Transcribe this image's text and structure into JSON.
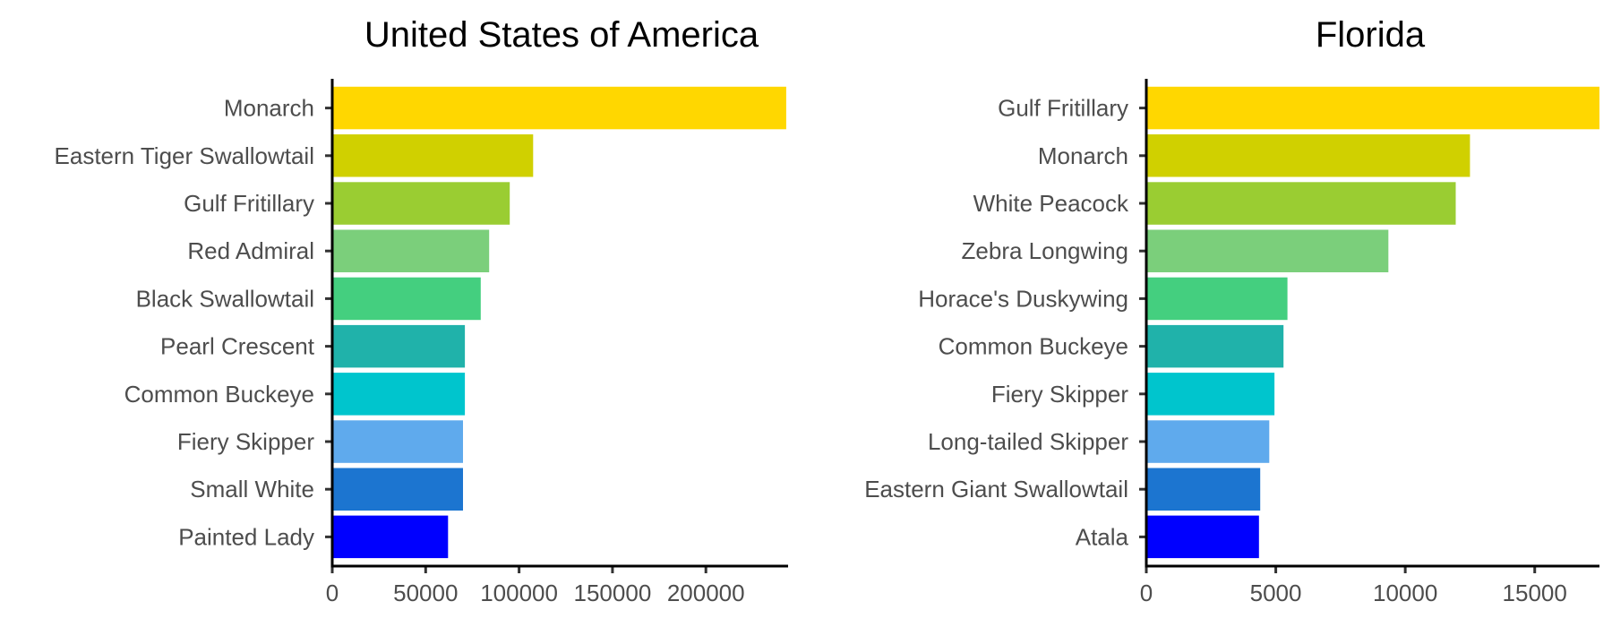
{
  "chart_data": [
    {
      "type": "bar",
      "orientation": "horizontal",
      "title": "United States of America",
      "xlabel": "",
      "ylabel": "",
      "categories": [
        "Monarch",
        "Eastern Tiger Swallowtail",
        "Gulf Fritillary",
        "Red Admiral",
        "Black Swallowtail",
        "Pearl Crescent",
        "Common Buckeye",
        "Fiery Skipper",
        "Small White",
        "Painted Lady"
      ],
      "values": [
        243000,
        107500,
        95000,
        84000,
        79500,
        71000,
        71000,
        70000,
        70000,
        62000
      ],
      "colors": [
        "#FFD700",
        "#D0D000",
        "#9ACD32",
        "#7BCF7B",
        "#44CF7F",
        "#20B2AA",
        "#00C5CD",
        "#5FAAED",
        "#1C75D0",
        "#0000FF"
      ],
      "xlim": [
        0,
        244000
      ],
      "xticks": [
        0,
        50000,
        100000,
        150000,
        200000
      ],
      "xtick_labels": [
        "0",
        "50000",
        "100000",
        "150000",
        "200000"
      ],
      "grid": false
    },
    {
      "type": "bar",
      "orientation": "horizontal",
      "title": "Florida",
      "xlabel": "",
      "ylabel": "",
      "categories": [
        "Gulf Fritillary",
        "Monarch",
        "White Peacock",
        "Zebra Longwing",
        "Horace's Duskywing",
        "Common Buckeye",
        "Fiery Skipper",
        "Long-tailed Skipper",
        "Eastern Giant Swallowtail",
        "Atala"
      ],
      "values": [
        17500,
        12500,
        11950,
        9350,
        5450,
        5300,
        4950,
        4750,
        4400,
        4350
      ],
      "colors": [
        "#FFD700",
        "#D0D000",
        "#9ACD32",
        "#7BCF7B",
        "#44CF7F",
        "#20B2AA",
        "#00C5CD",
        "#5FAAED",
        "#1C75D0",
        "#0000FF"
      ],
      "xlim": [
        0,
        17500
      ],
      "xticks": [
        0,
        5000,
        10000,
        15000
      ],
      "xtick_labels": [
        "0",
        "5000",
        "10000",
        "15000"
      ],
      "grid": false
    }
  ]
}
